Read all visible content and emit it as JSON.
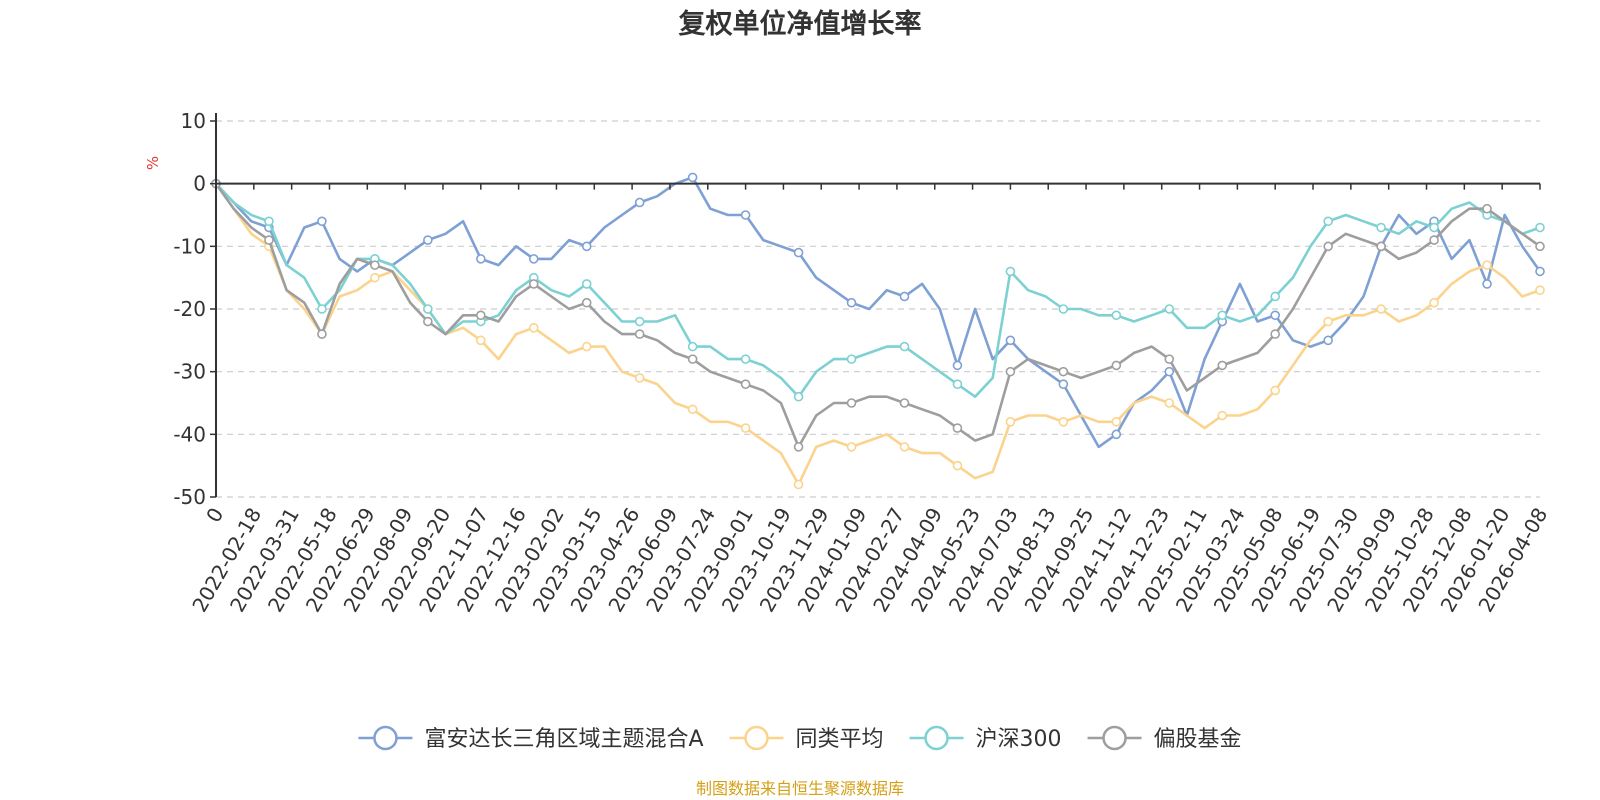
{
  "chart_data": {
    "type": "line",
    "title": "复权单位净值增长率",
    "ylabel": "%",
    "ylim": [
      -50,
      10
    ],
    "y_ticks": [
      10,
      0,
      -10,
      -20,
      -30,
      -40,
      -50
    ],
    "x_tick_labels": [
      "0",
      "2022-02-18",
      "2022-03-31",
      "2022-05-18",
      "2022-06-29",
      "2022-08-09",
      "2022-09-20",
      "2022-11-07",
      "2022-12-16",
      "2023-02-02",
      "2023-03-15",
      "2023-04-26",
      "2023-06-09",
      "2023-07-24",
      "2023-09-01",
      "2023-10-19",
      "2023-11-29",
      "2024-01-09",
      "2024-02-27",
      "2024-04-09",
      "2024-05-23",
      "2024-07-03",
      "2024-08-13",
      "2024-09-25",
      "2024-11-12",
      "2024-12-23",
      "2025-02-11",
      "2025-03-24",
      "2025-05-08",
      "2025-06-19",
      "2025-07-30",
      "2025-09-09",
      "2025-10-28",
      "2025-12-08",
      "2026-01-20",
      "2026-04-08"
    ],
    "series": [
      {
        "name": "富安达长三角区域主题混合A",
        "color": "#7fa0d4",
        "values": [
          0,
          -3,
          -6,
          -7,
          -13,
          -7,
          -6,
          -12,
          -14,
          -12,
          -13,
          -11,
          -9,
          -8,
          -6,
          -12,
          -13,
          -10,
          -12,
          -12,
          -9,
          -10,
          -7,
          -5,
          -3,
          -2,
          0,
          1,
          -4,
          -5,
          -5,
          -9,
          -10,
          -11,
          -15,
          -17,
          -19,
          -20,
          -17,
          -18,
          -16,
          -20,
          -29,
          -20,
          -28,
          -25,
          -28,
          -30,
          -32,
          -37,
          -42,
          -40,
          -35,
          -33,
          -30,
          -37,
          -28,
          -22,
          -16,
          -22,
          -21,
          -25,
          -26,
          -25,
          -22,
          -18,
          -10,
          -5,
          -8,
          -6,
          -12,
          -9,
          -16,
          -5,
          -10,
          -14
        ]
      },
      {
        "name": "同类平均",
        "color": "#fbd38c",
        "values": [
          0,
          -4,
          -8,
          -10,
          -17,
          -20,
          -24,
          -18,
          -17,
          -15,
          -14,
          -17,
          -20,
          -24,
          -23,
          -25,
          -28,
          -24,
          -23,
          -25,
          -27,
          -26,
          -26,
          -30,
          -31,
          -32,
          -35,
          -36,
          -38,
          -38,
          -39,
          -41,
          -43,
          -48,
          -42,
          -41,
          -42,
          -41,
          -40,
          -42,
          -43,
          -43,
          -45,
          -47,
          -46,
          -38,
          -37,
          -37,
          -38,
          -37,
          -38,
          -38,
          -35,
          -34,
          -35,
          -37,
          -39,
          -37,
          -37,
          -36,
          -33,
          -29,
          -25,
          -22,
          -21,
          -21,
          -20,
          -22,
          -21,
          -19,
          -16,
          -14,
          -13,
          -15,
          -18,
          -17
        ]
      },
      {
        "name": "沪深300",
        "color": "#7dd1d3",
        "values": [
          0,
          -3,
          -5,
          -6,
          -13,
          -15,
          -20,
          -17,
          -12,
          -12,
          -13,
          -16,
          -20,
          -24,
          -22,
          -22,
          -21,
          -17,
          -15,
          -17,
          -18,
          -16,
          -19,
          -22,
          -22,
          -22,
          -21,
          -26,
          -26,
          -28,
          -28,
          -29,
          -31,
          -34,
          -30,
          -28,
          -28,
          -27,
          -26,
          -26,
          -28,
          -30,
          -32,
          -34,
          -31,
          -14,
          -17,
          -18,
          -20,
          -20,
          -21,
          -21,
          -22,
          -21,
          -20,
          -23,
          -23,
          -21,
          -22,
          -21,
          -18,
          -15,
          -10,
          -6,
          -5,
          -6,
          -7,
          -8,
          -6,
          -7,
          -4,
          -3,
          -5,
          -6,
          -8,
          -7
        ]
      },
      {
        "name": "偏股基金",
        "color": "#9e9e9e",
        "values": [
          0,
          -4,
          -7,
          -9,
          -17,
          -19,
          -24,
          -16,
          -12,
          -13,
          -14,
          -19,
          -22,
          -24,
          -21,
          -21,
          -22,
          -18,
          -16,
          -18,
          -20,
          -19,
          -22,
          -24,
          -24,
          -25,
          -27,
          -28,
          -30,
          -31,
          -32,
          -33,
          -35,
          -42,
          -37,
          -35,
          -35,
          -34,
          -34,
          -35,
          -36,
          -37,
          -39,
          -41,
          -40,
          -30,
          -28,
          -29,
          -30,
          -31,
          -30,
          -29,
          -27,
          -26,
          -28,
          -33,
          -31,
          -29,
          -28,
          -27,
          -24,
          -20,
          -15,
          -10,
          -8,
          -9,
          -10,
          -12,
          -11,
          -9,
          -6,
          -4,
          -4,
          -6,
          -8,
          -10
        ]
      }
    ]
  },
  "footer": {
    "source": "制图数据来自恒生聚源数据库"
  },
  "colors": {
    "axis": "#333333",
    "grid": "#cccccc",
    "unit": "#e53935",
    "source": "#d4a017"
  }
}
